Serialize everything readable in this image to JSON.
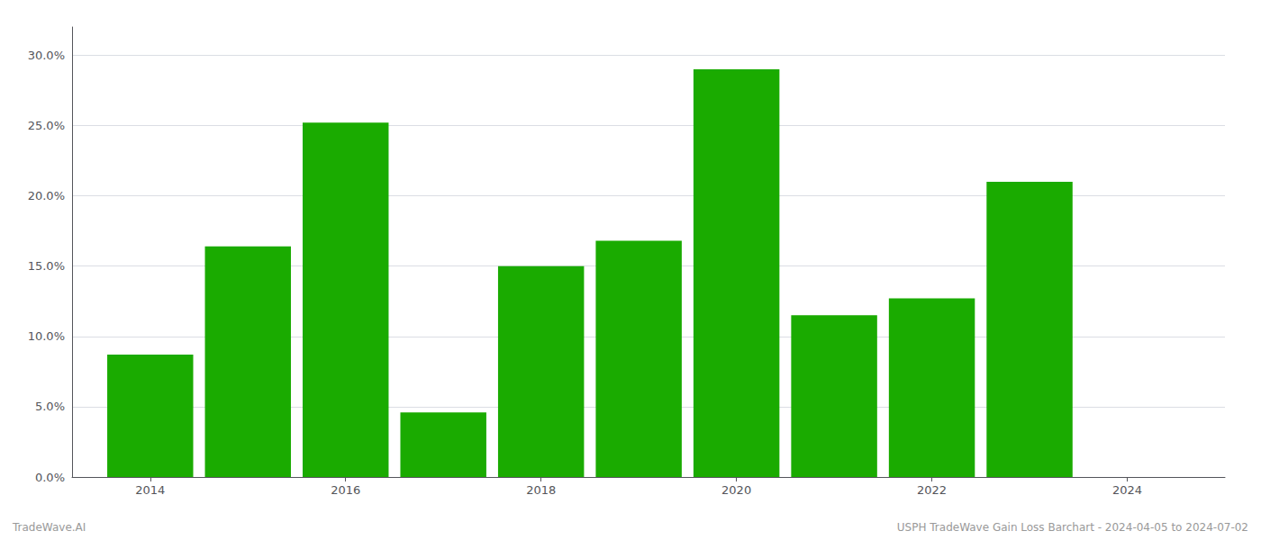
{
  "chart_data": {
    "type": "bar",
    "x": [
      2014,
      2015,
      2016,
      2017,
      2018,
      2019,
      2020,
      2021,
      2022,
      2023
    ],
    "values": [
      0.087,
      0.164,
      0.252,
      0.046,
      0.15,
      0.168,
      0.29,
      0.115,
      0.127,
      0.21
    ],
    "color": "#1aab00",
    "xlim": [
      2013.2,
      2025.0
    ],
    "xticks": [
      2014,
      2016,
      2018,
      2020,
      2022,
      2024
    ],
    "ylim": [
      0,
      0.32
    ],
    "yticks": [
      {
        "value": 0.0,
        "label": "0.0%"
      },
      {
        "value": 0.05,
        "label": "5.0%"
      },
      {
        "value": 0.1,
        "label": "10.0%"
      },
      {
        "value": 0.15,
        "label": "15.0%"
      },
      {
        "value": 0.2,
        "label": "20.0%"
      },
      {
        "value": 0.25,
        "label": "25.0%"
      },
      {
        "value": 0.3,
        "label": "30.0%"
      }
    ],
    "grid": true,
    "annotations": [
      "TradeWave.AI",
      "USPH TradeWave Gain Loss Barchart - 2024-04-05 to 2024-07-02"
    ]
  }
}
